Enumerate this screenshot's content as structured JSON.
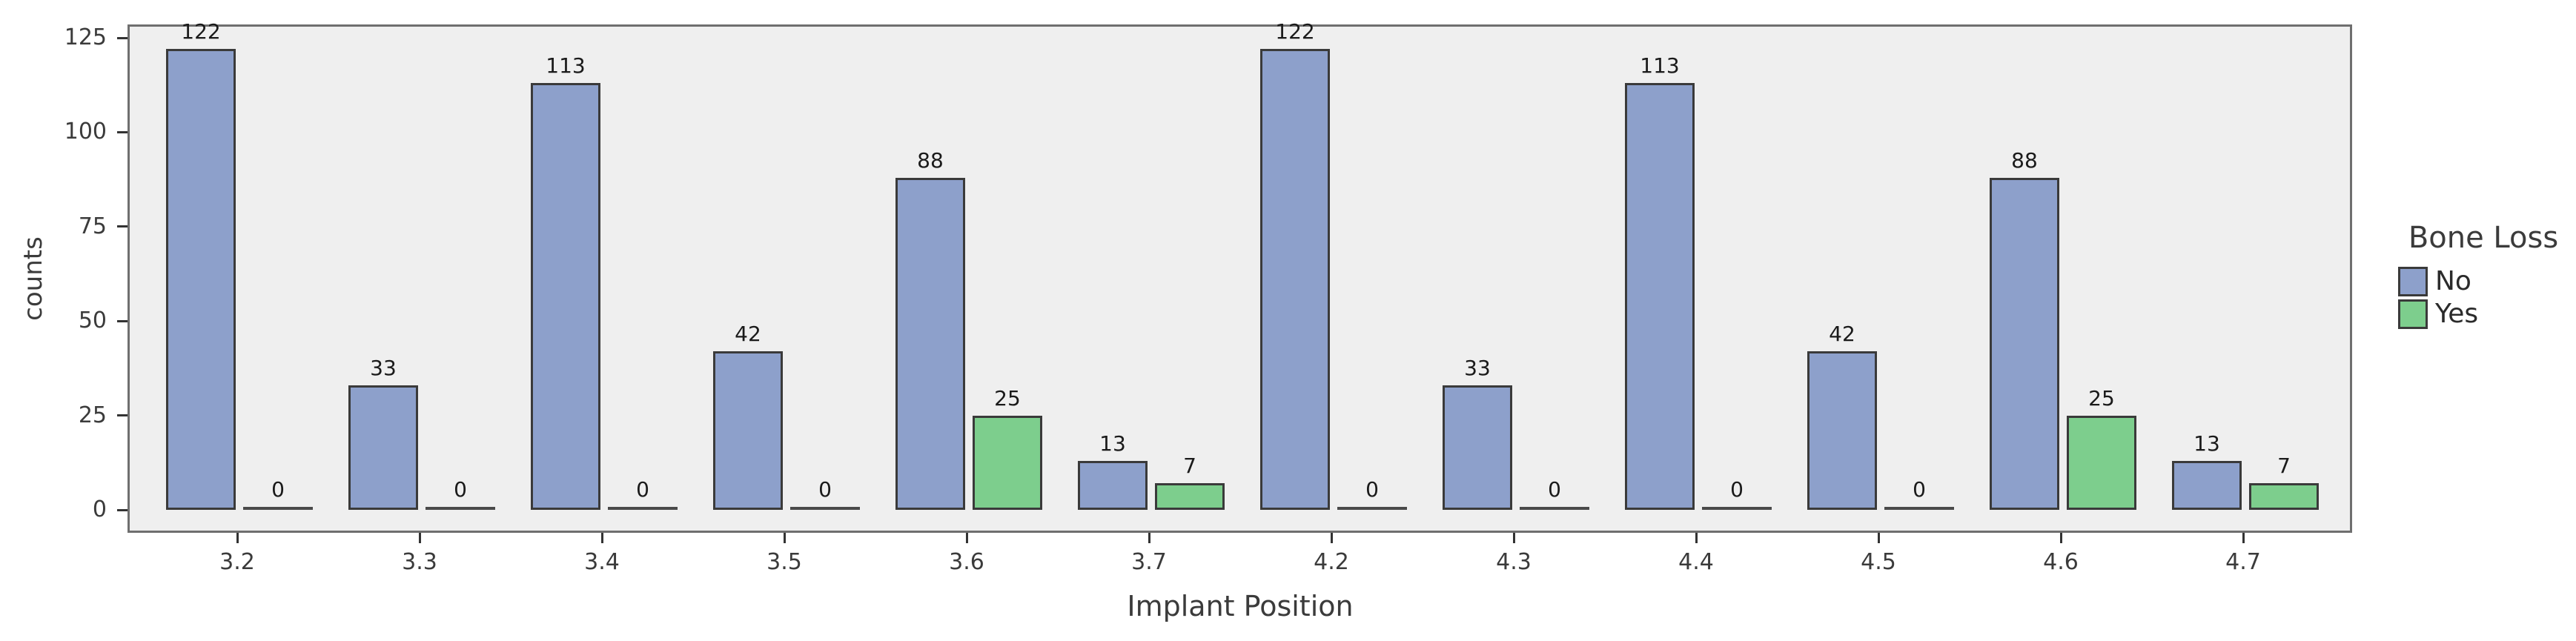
{
  "chart_data": {
    "type": "bar",
    "title": "",
    "xlabel": "Implant Position",
    "ylabel": "counts",
    "categories": [
      "3.2",
      "3.3",
      "3.4",
      "3.5",
      "3.6",
      "3.7",
      "4.2",
      "4.3",
      "4.4",
      "4.5",
      "4.6",
      "4.7"
    ],
    "series": [
      {
        "name": "No",
        "color": "#8da0cb",
        "values": [
          122,
          33,
          113,
          42,
          88,
          13,
          122,
          33,
          113,
          42,
          88,
          13
        ]
      },
      {
        "name": "Yes",
        "color": "#7dce8d",
        "values": [
          0,
          0,
          0,
          0,
          25,
          7,
          0,
          0,
          0,
          0,
          25,
          7
        ]
      }
    ],
    "ylim": [
      0,
      125
    ],
    "yticks": [
      0,
      25,
      50,
      75,
      100,
      125
    ],
    "bar_value_labels": true,
    "grid": false,
    "plot_background": "#efefef",
    "bar_edge_color": "#3a3a3a",
    "legend": {
      "title": "Bone Loss",
      "position": "right"
    }
  }
}
